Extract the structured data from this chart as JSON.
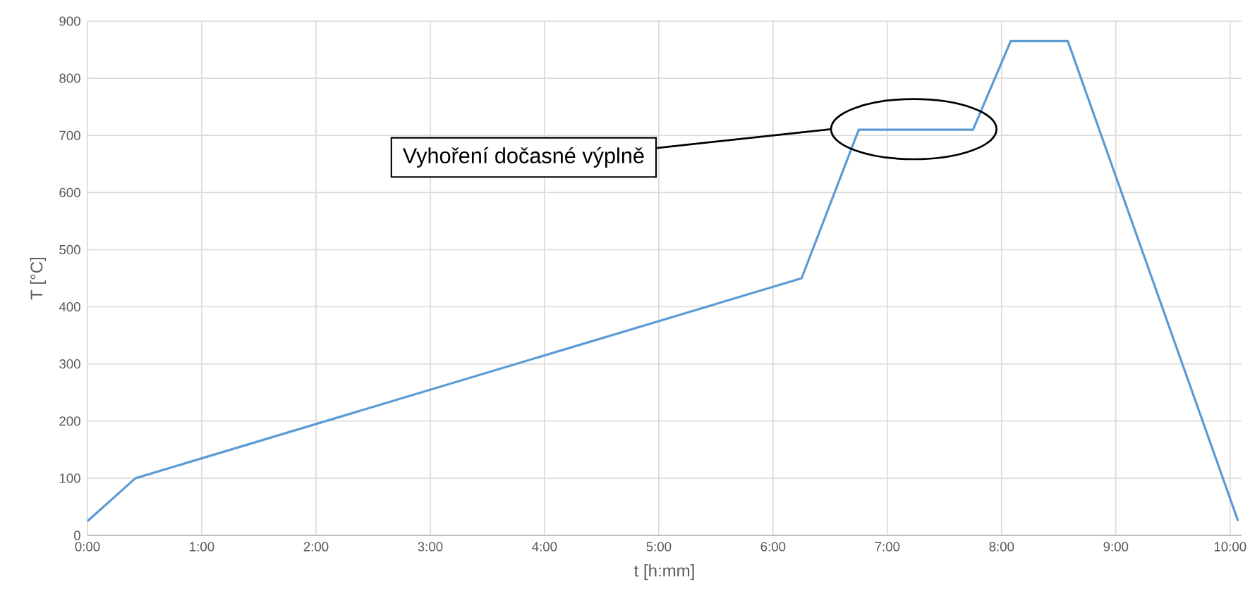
{
  "chart_data": {
    "type": "line",
    "xlabel": "t [h:mm]",
    "ylabel": "T [°C]",
    "x": [
      0,
      0.42,
      6.25,
      6.75,
      7.75,
      8.08,
      8.58,
      10.07
    ],
    "series": [
      {
        "color": "#5b9bd5",
        "values": [
          25,
          100,
          450,
          710,
          710,
          865,
          865,
          25
        ]
      }
    ],
    "xlim": [
      0,
      10.1
    ],
    "ylim": [
      0,
      900
    ],
    "xticks": [
      {
        "value": 0,
        "label": "0:00"
      },
      {
        "value": 1,
        "label": "1:00"
      },
      {
        "value": 2,
        "label": "2:00"
      },
      {
        "value": 3,
        "label": "3:00"
      },
      {
        "value": 4,
        "label": "4:00"
      },
      {
        "value": 5,
        "label": "5:00"
      },
      {
        "value": 6,
        "label": "6:00"
      },
      {
        "value": 7,
        "label": "7:00"
      },
      {
        "value": 8,
        "label": "8:00"
      },
      {
        "value": 9,
        "label": "9:00"
      },
      {
        "value": 10,
        "label": "10:00"
      }
    ],
    "yticks": [
      0,
      100,
      200,
      300,
      400,
      500,
      600,
      700,
      800,
      900
    ],
    "grid": true,
    "marker": "none",
    "line_style": "solid",
    "annotations": [
      "Vyhoření dočasné výplně"
    ]
  }
}
